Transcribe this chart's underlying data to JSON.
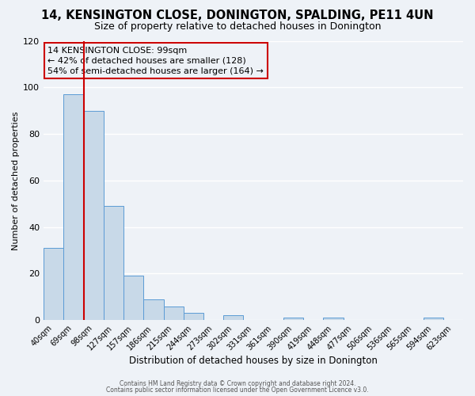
{
  "title": "14, KENSINGTON CLOSE, DONINGTON, SPALDING, PE11 4UN",
  "subtitle": "Size of property relative to detached houses in Donington",
  "xlabel": "Distribution of detached houses by size in Donington",
  "ylabel": "Number of detached properties",
  "bin_labels": [
    "40sqm",
    "69sqm",
    "98sqm",
    "127sqm",
    "157sqm",
    "186sqm",
    "215sqm",
    "244sqm",
    "273sqm",
    "302sqm",
    "331sqm",
    "361sqm",
    "390sqm",
    "419sqm",
    "448sqm",
    "477sqm",
    "506sqm",
    "536sqm",
    "565sqm",
    "594sqm",
    "623sqm"
  ],
  "bar_values": [
    31,
    97,
    90,
    49,
    19,
    9,
    6,
    3,
    0,
    2,
    0,
    0,
    1,
    0,
    1,
    0,
    0,
    0,
    0,
    1,
    0
  ],
  "bar_color": "#c8d9e8",
  "bar_edge_color": "#5b9bd5",
  "marker_bin_index": 2,
  "marker_label": "14 KENSINGTON CLOSE: 99sqm",
  "marker_line_color": "#cc0000",
  "annotation_line1": "← 42% of detached houses are smaller (128)",
  "annotation_line2": "54% of semi-detached houses are larger (164) →",
  "ylim": [
    0,
    120
  ],
  "yticks": [
    0,
    20,
    40,
    60,
    80,
    100,
    120
  ],
  "footer_line1": "Contains HM Land Registry data © Crown copyright and database right 2024.",
  "footer_line2": "Contains public sector information licensed under the Open Government Licence v3.0.",
  "background_color": "#eef2f7",
  "grid_color": "#ffffff",
  "title_fontsize": 10.5,
  "subtitle_fontsize": 9
}
